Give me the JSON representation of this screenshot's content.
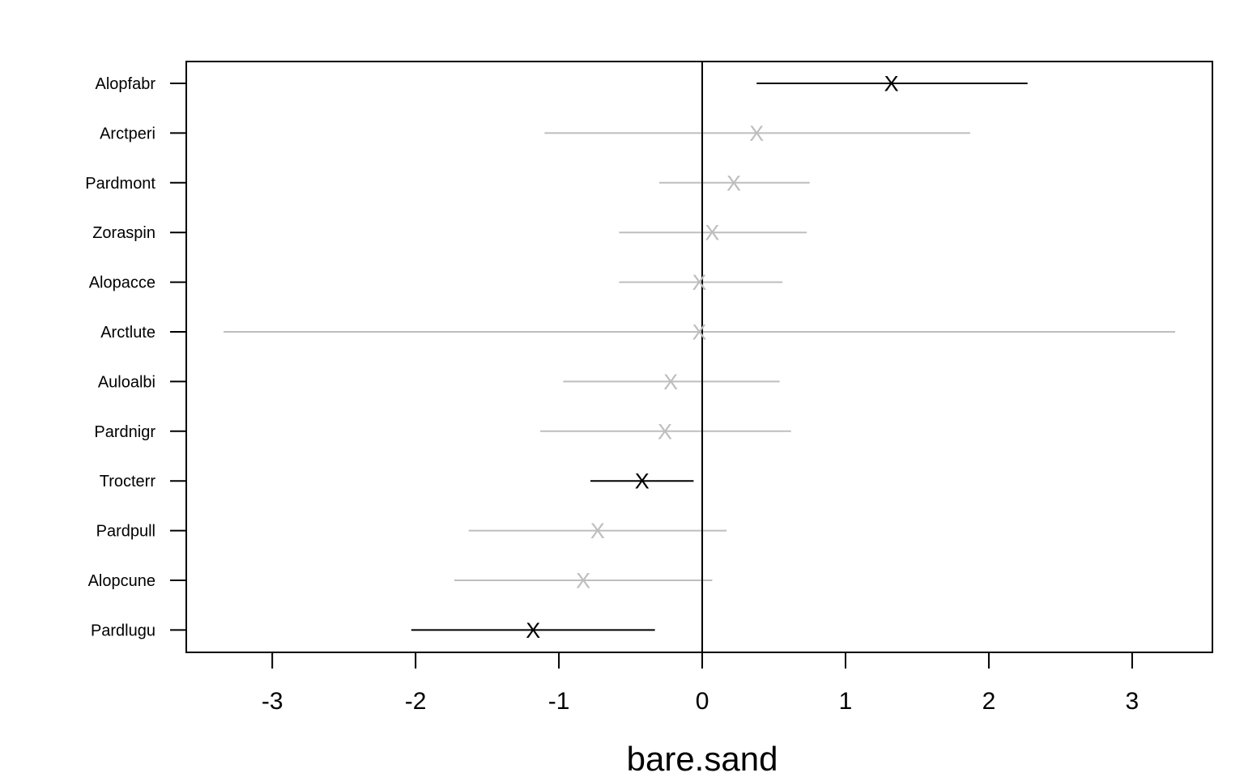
{
  "chart_data": {
    "type": "scatter",
    "xlabel": "bare.sand",
    "ylabel": "",
    "xlim": [
      -3.6,
      3.56
    ],
    "xticks": [
      -3,
      -2,
      -1,
      0,
      1,
      2,
      3
    ],
    "xtick_labels": [
      "-3",
      "-2",
      "-1",
      "0",
      "1",
      "2",
      "3"
    ],
    "reference_line_x": 0,
    "marker": "X",
    "colors": {
      "significant": "#000000",
      "not_significant": "#bebebe"
    },
    "rows": [
      {
        "label": "Alopfabr",
        "estimate": 1.32,
        "lower": 0.38,
        "upper": 2.27,
        "significant": true
      },
      {
        "label": "Arctperi",
        "estimate": 0.38,
        "lower": -1.1,
        "upper": 1.87,
        "significant": false
      },
      {
        "label": "Pardmont",
        "estimate": 0.22,
        "lower": -0.3,
        "upper": 0.75,
        "significant": false
      },
      {
        "label": "Zoraspin",
        "estimate": 0.07,
        "lower": -0.58,
        "upper": 0.73,
        "significant": false
      },
      {
        "label": "Alopacce",
        "estimate": -0.02,
        "lower": -0.58,
        "upper": 0.56,
        "significant": false
      },
      {
        "label": "Arctlute",
        "estimate": -0.02,
        "lower": -3.34,
        "upper": 3.3,
        "significant": false
      },
      {
        "label": "Auloalbi",
        "estimate": -0.22,
        "lower": -0.97,
        "upper": 0.54,
        "significant": false
      },
      {
        "label": "Pardnigr",
        "estimate": -0.26,
        "lower": -1.13,
        "upper": 0.62,
        "significant": false
      },
      {
        "label": "Trocterr",
        "estimate": -0.42,
        "lower": -0.78,
        "upper": -0.06,
        "significant": true
      },
      {
        "label": "Pardpull",
        "estimate": -0.73,
        "lower": -1.63,
        "upper": 0.17,
        "significant": false
      },
      {
        "label": "Alopcune",
        "estimate": -0.83,
        "lower": -1.73,
        "upper": 0.07,
        "significant": false
      },
      {
        "label": "Pardlugu",
        "estimate": -1.18,
        "lower": -2.03,
        "upper": -0.33,
        "significant": true
      }
    ]
  }
}
